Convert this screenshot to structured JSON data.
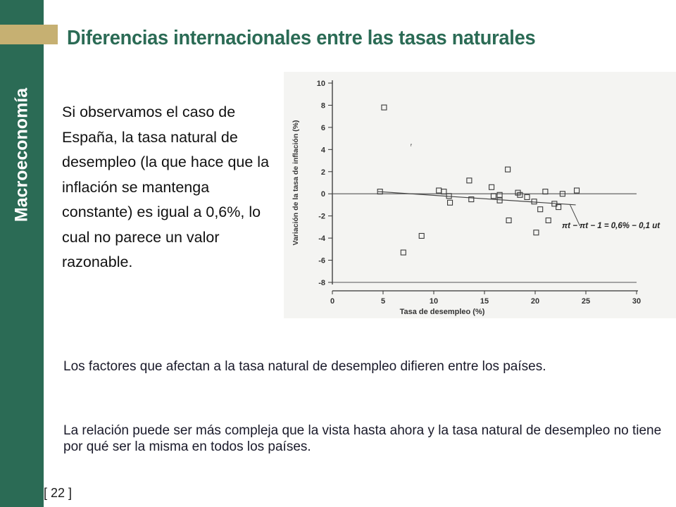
{
  "sidebar": {
    "label": "Macroeconomía",
    "page_number": "[ 22 ]"
  },
  "title": "Diferencias internacionales entre las tasas naturales",
  "intro_text": "Si observamos el caso de España, la tasa natural de desempleo (la que hace que la inflación se mantenga constante) es igual a 0,6%, lo cual no parece un valor razonable.",
  "bullets": [
    "Los factores que afectan a la tasa natural de desempleo difieren entre los países.",
    "La relación puede ser más compleja que la vista hasta ahora y la tasa natural de desempleo no tiene por qué ser la misma en todos los países."
  ],
  "colors": {
    "sidebar": "#2b6b55",
    "accent": "#c6b072",
    "title": "#2b6b55"
  },
  "chart_data": {
    "type": "scatter",
    "xlabel": "Tasa de desempleo (%)",
    "ylabel": "Variación de la tasa de inflación (%)",
    "xlim": [
      0,
      30
    ],
    "ylim": [
      -8,
      10
    ],
    "xticks": [
      0,
      5,
      10,
      15,
      20,
      25,
      30
    ],
    "yticks": [
      10,
      8,
      6,
      4,
      2,
      0,
      -2,
      -4,
      -6,
      -8
    ],
    "grid": false,
    "points": [
      {
        "x": 4.7,
        "y": 0.2
      },
      {
        "x": 5.1,
        "y": 7.8
      },
      {
        "x": 7.0,
        "y": -5.3
      },
      {
        "x": 8.8,
        "y": -3.8
      },
      {
        "x": 10.5,
        "y": 0.3
      },
      {
        "x": 11.0,
        "y": 0.2
      },
      {
        "x": 11.5,
        "y": -0.2
      },
      {
        "x": 11.6,
        "y": -0.8
      },
      {
        "x": 13.5,
        "y": 1.2
      },
      {
        "x": 13.7,
        "y": -0.5
      },
      {
        "x": 15.7,
        "y": 0.6
      },
      {
        "x": 15.9,
        "y": -0.2
      },
      {
        "x": 16.5,
        "y": -0.6
      },
      {
        "x": 16.5,
        "y": -0.1
      },
      {
        "x": 17.3,
        "y": 2.2
      },
      {
        "x": 17.4,
        "y": -2.4
      },
      {
        "x": 18.3,
        "y": 0.1
      },
      {
        "x": 18.5,
        "y": -0.1
      },
      {
        "x": 19.2,
        "y": -0.3
      },
      {
        "x": 19.9,
        "y": -0.7
      },
      {
        "x": 20.1,
        "y": -3.5
      },
      {
        "x": 20.5,
        "y": -1.4
      },
      {
        "x": 21.0,
        "y": 0.2
      },
      {
        "x": 21.3,
        "y": -2.4
      },
      {
        "x": 21.9,
        "y": -0.9
      },
      {
        "x": 22.3,
        "y": -1.2
      },
      {
        "x": 22.7,
        "y": 0.0
      },
      {
        "x": 24.1,
        "y": 0.3
      }
    ],
    "fitted_line": {
      "x": [
        4.5,
        24.0
      ],
      "y": [
        0.2,
        -1.0
      ]
    },
    "reference_lines": [
      0,
      -8
    ],
    "equation_label": "πt − πt − 1 = 0,6% − 0,1 ut",
    "stray_marks": [
      {
        "x": 7.7,
        "y": 4.1,
        "text": "ᶠ"
      }
    ]
  }
}
